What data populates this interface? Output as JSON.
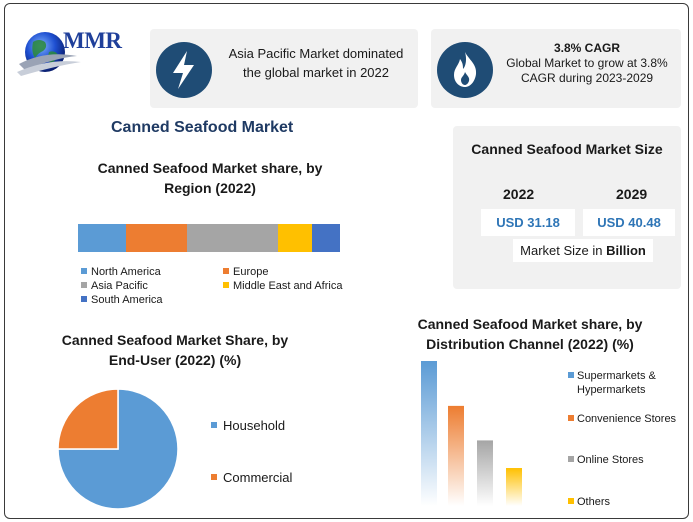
{
  "logo": {
    "text": "MMR",
    "icon": "globe-icon"
  },
  "card_region": {
    "icon": "lightning-bolt-icon",
    "text": "Asia Pacific Market dominated the global market in 2022"
  },
  "card_cagr": {
    "icon": "flame-icon",
    "title": "3.8% CAGR",
    "text": "Global Market to grow at 3.8% CAGR during 2023-2029"
  },
  "main_title": "Canned Seafood Market",
  "market_size": {
    "title": "Canned Seafood Market Size",
    "years": [
      "2022",
      "2029"
    ],
    "values": [
      "USD 31.18",
      "USD 40.48"
    ],
    "unit_prefix": "Market Size in ",
    "unit_bold": "Billion"
  },
  "colors": {
    "blue": "#5b9bd5",
    "orange": "#ed7d31",
    "gray": "#a5a5a5",
    "yellow": "#ffc000",
    "dark_blue": "#4472c4",
    "navy": "#1f4c75"
  },
  "chart_data": [
    {
      "type": "bar",
      "title": "Canned Seafood Market share, by Region (2022)",
      "orientation": "horizontal-stacked-100",
      "series": [
        {
          "name": "North America",
          "values": [
            18.5
          ],
          "color": "#5b9bd5"
        },
        {
          "name": "Europe",
          "values": [
            23
          ],
          "color": "#ed7d31"
        },
        {
          "name": "Asia Pacific",
          "values": [
            35
          ],
          "color": "#a5a5a5"
        },
        {
          "name": "Middle East and Africa",
          "values": [
            13
          ],
          "color": "#ffc000"
        },
        {
          "name": "South America",
          "values": [
            10.5
          ],
          "color": "#4472c4"
        }
      ],
      "legend": "bottom"
    },
    {
      "type": "pie",
      "title": "Canned Seafood Market Share, by End-User (2022) (%)",
      "categories": [
        "Household",
        "Commercial"
      ],
      "values": [
        75,
        25
      ],
      "colors": [
        "#5b9bd5",
        "#ed7d31"
      ],
      "legend": "right"
    },
    {
      "type": "bar",
      "title": "Canned Seafood Market share, by Distribution Channel (2022) (%)",
      "categories": [
        "Supermarkets & Hypermarkets",
        "Convenience Stores",
        "Online Stores",
        "Others"
      ],
      "values": [
        42,
        29,
        19,
        11
      ],
      "colors": [
        "#5b9bd5",
        "#ed7d31",
        "#a5a5a5",
        "#ffc000"
      ],
      "legend": "right",
      "gradient_fill": true
    }
  ]
}
